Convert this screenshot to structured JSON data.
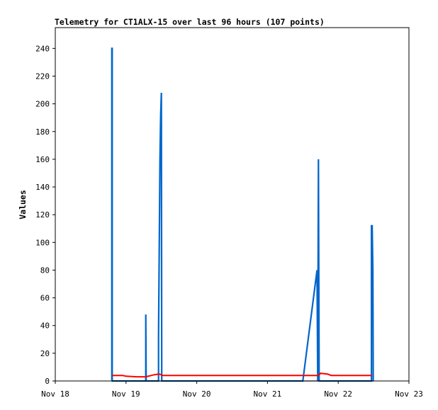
{
  "chart_data": {
    "type": "line",
    "title": "Telemetry for CT1ALX-15 over last 96 hours (107 points)",
    "xlabel": "",
    "ylabel": "Values",
    "x_ticks": [
      "Nov 18",
      "Nov 19",
      "Nov 20",
      "Nov 21",
      "Nov 22",
      "Nov 23"
    ],
    "x_range_days": [
      0,
      5
    ],
    "y_ticks": [
      0,
      20,
      40,
      60,
      80,
      100,
      120,
      140,
      160,
      180,
      200,
      220,
      240
    ],
    "ylim": [
      0,
      255
    ],
    "grid": false,
    "legend": "none",
    "series": [
      {
        "color": "#0066cc",
        "points": [
          [
            0.8,
            0
          ],
          [
            0.8,
            240
          ],
          [
            0.805,
            240
          ],
          [
            0.805,
            0
          ],
          [
            1.28,
            0
          ],
          [
            1.28,
            48
          ],
          [
            1.285,
            0
          ],
          [
            1.46,
            0
          ],
          [
            1.46,
            32
          ],
          [
            1.47,
            96
          ],
          [
            1.48,
            160
          ],
          [
            1.49,
            192
          ],
          [
            1.5,
            208
          ],
          [
            1.505,
            0
          ],
          [
            3.5,
            0
          ],
          [
            3.7,
            80
          ],
          [
            3.71,
            0
          ],
          [
            3.72,
            160
          ],
          [
            3.73,
            0
          ],
          [
            4.47,
            0
          ],
          [
            4.47,
            112
          ],
          [
            4.48,
            112
          ],
          [
            4.49,
            80
          ],
          [
            4.495,
            0
          ]
        ]
      },
      {
        "color": "#ff0000",
        "points": [
          [
            0.8,
            4
          ],
          [
            0.95,
            4
          ],
          [
            1.0,
            3.5
          ],
          [
            1.15,
            3
          ],
          [
            1.28,
            3
          ],
          [
            1.4,
            4.5
          ],
          [
            1.47,
            5
          ],
          [
            1.52,
            4
          ],
          [
            2.0,
            4
          ],
          [
            2.5,
            4
          ],
          [
            3.0,
            4
          ],
          [
            3.5,
            4
          ],
          [
            3.72,
            4
          ],
          [
            3.75,
            5.5
          ],
          [
            3.85,
            5
          ],
          [
            3.9,
            4
          ],
          [
            4.2,
            4
          ],
          [
            4.48,
            4
          ]
        ]
      },
      {
        "color": "#000000",
        "points": [
          [
            0.8,
            0
          ],
          [
            4.5,
            0
          ]
        ]
      }
    ]
  }
}
